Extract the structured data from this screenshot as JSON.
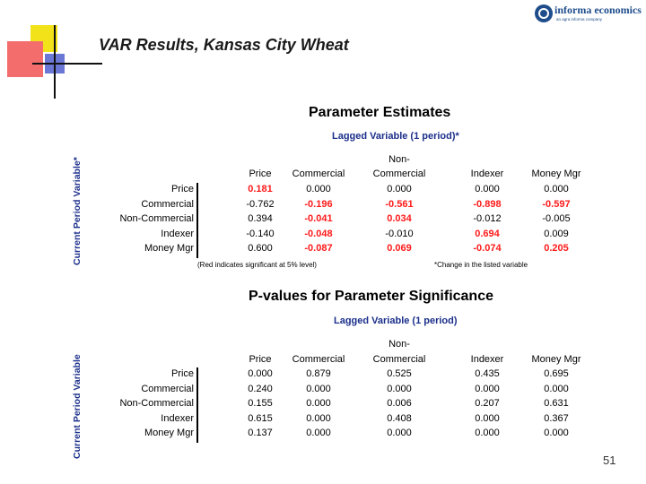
{
  "slide": {
    "title": "VAR Results, Kansas City Wheat",
    "page_number": "51"
  },
  "logo": {
    "name": "informa economics",
    "tagline": "an agra informa company"
  },
  "table1": {
    "title": "Parameter Estimates",
    "subtitle": "Lagged Variable (1 period)*",
    "side_label": "Current Period Variable*",
    "columns": [
      {
        "top": "",
        "bottom": "Price"
      },
      {
        "top": "",
        "bottom": "Commercial"
      },
      {
        "top": "Non-",
        "bottom": "Commercial"
      },
      {
        "top": "",
        "bottom": "Indexer"
      },
      {
        "top": "",
        "bottom": "Money Mgr"
      }
    ],
    "rows": [
      {
        "label": "Price",
        "values": [
          "0.181",
          "0.000",
          "0.000",
          "0.000",
          "0.000"
        ],
        "significant": [
          true,
          false,
          false,
          false,
          false
        ]
      },
      {
        "label": "Commercial",
        "values": [
          "-0.762",
          "-0.196",
          "-0.561",
          "-0.898",
          "-0.597"
        ],
        "significant": [
          false,
          true,
          true,
          true,
          true
        ]
      },
      {
        "label": "Non-Commercial",
        "values": [
          "0.394",
          "-0.041",
          "0.034",
          "-0.012",
          "-0.005"
        ],
        "significant": [
          false,
          true,
          true,
          false,
          false
        ]
      },
      {
        "label": "Indexer",
        "values": [
          "-0.140",
          "-0.048",
          "-0.010",
          "0.694",
          "0.009"
        ],
        "significant": [
          false,
          true,
          false,
          true,
          false
        ]
      },
      {
        "label": "Money Mgr",
        "values": [
          "0.600",
          "-0.087",
          "0.069",
          "-0.074",
          "0.205"
        ],
        "significant": [
          false,
          true,
          true,
          true,
          true
        ]
      }
    ],
    "note_left": "(Red indicates significant at 5% level)",
    "note_right": "*Change in the listed variable"
  },
  "table2": {
    "title": "P-values for Parameter Significance",
    "subtitle": "Lagged Variable (1 period)",
    "side_label": "Current Period Variable",
    "columns": [
      {
        "top": "",
        "bottom": "Price"
      },
      {
        "top": "",
        "bottom": "Commercial"
      },
      {
        "top": "Non-",
        "bottom": "Commercial"
      },
      {
        "top": "",
        "bottom": "Indexer"
      },
      {
        "top": "",
        "bottom": "Money Mgr"
      }
    ],
    "rows": [
      {
        "label": "Price",
        "values": [
          "0.000",
          "0.879",
          "0.525",
          "0.435",
          "0.695"
        ]
      },
      {
        "label": "Commercial",
        "values": [
          "0.240",
          "0.000",
          "0.000",
          "0.000",
          "0.000"
        ]
      },
      {
        "label": "Non-Commercial",
        "values": [
          "0.155",
          "0.000",
          "0.006",
          "0.207",
          "0.631"
        ]
      },
      {
        "label": "Indexer",
        "values": [
          "0.615",
          "0.000",
          "0.408",
          "0.000",
          "0.367"
        ]
      },
      {
        "label": "Money Mgr",
        "values": [
          "0.137",
          "0.000",
          "0.000",
          "0.000",
          "0.000"
        ]
      }
    ]
  },
  "colors": {
    "significant": "#ff1a1a",
    "label_blue": "#1b2f8a",
    "logo_blue": "#1f4d8c"
  }
}
